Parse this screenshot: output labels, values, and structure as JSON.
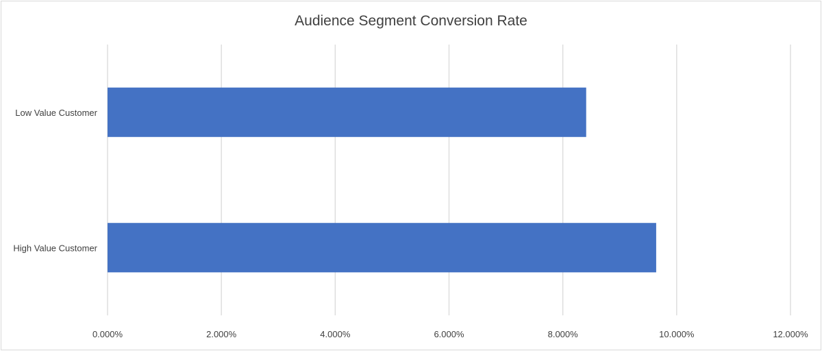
{
  "chart_data": {
    "type": "bar",
    "orientation": "horizontal",
    "title": "Audience Segment Conversion Rate",
    "categories": [
      "Low Value Customer",
      "High Value Customer"
    ],
    "values": [
      8.41,
      9.64
    ],
    "value_format": "percent",
    "xlim": [
      0,
      12
    ],
    "xticks": [
      0,
      2,
      4,
      6,
      8,
      10,
      12
    ],
    "xtick_labels": [
      "0.000%",
      "2.000%",
      "4.000%",
      "6.000%",
      "8.000%",
      "10.000%",
      "12.000%"
    ],
    "xlabel": "",
    "ylabel": "",
    "grid": "vertical",
    "legend": "none",
    "bar_color": "#4472C4"
  }
}
